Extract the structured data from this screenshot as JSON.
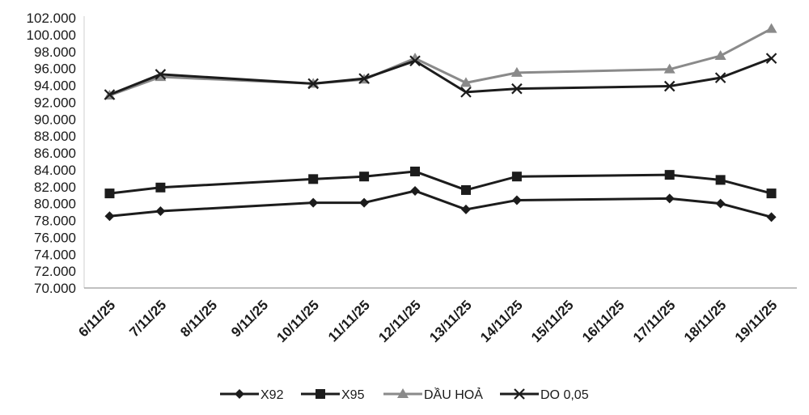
{
  "chart_data": {
    "type": "line",
    "title": "",
    "xlabel": "",
    "ylabel": "",
    "ylim": [
      70000,
      102000
    ],
    "y_ticks": [
      "70.000",
      "72.000",
      "74.000",
      "76.000",
      "78.000",
      "80.000",
      "82.000",
      "84.000",
      "86.000",
      "88.000",
      "90.000",
      "92.000",
      "94.000",
      "96.000",
      "98.000",
      "100.000",
      "102.000"
    ],
    "grid": false,
    "legend_position": "bottom",
    "categories": [
      "6/11/25",
      "7/11/25",
      "8/11/25",
      "9/11/25",
      "10/11/25",
      "11/11/25",
      "12/11/25",
      "13/11/25",
      "14/11/25",
      "15/11/25",
      "16/11/25",
      "17/11/25",
      "18/11/25",
      "19/11/25"
    ],
    "series": [
      {
        "name": "X92",
        "marker": "diamond",
        "color": "#1c1c1c",
        "values": [
          78500,
          79100,
          null,
          null,
          80100,
          80100,
          81500,
          79300,
          80400,
          null,
          null,
          80600,
          80000,
          78400
        ]
      },
      {
        "name": "X95",
        "marker": "square",
        "color": "#1c1c1c",
        "values": [
          81200,
          81900,
          null,
          null,
          82900,
          83200,
          83800,
          81600,
          83200,
          null,
          null,
          83400,
          82800,
          81200
        ]
      },
      {
        "name": "DẦU HOẢ",
        "marker": "triangle",
        "color": "#8a8a8a",
        "values": [
          92800,
          95000,
          null,
          null,
          94200,
          94700,
          97200,
          94300,
          95500,
          null,
          null,
          95900,
          97500,
          100700
        ]
      },
      {
        "name": "DO 0,05",
        "marker": "x",
        "color": "#1c1c1c",
        "values": [
          92900,
          95300,
          null,
          null,
          94200,
          94800,
          96900,
          93200,
          93600,
          null,
          null,
          93900,
          94900,
          97200
        ]
      }
    ]
  }
}
